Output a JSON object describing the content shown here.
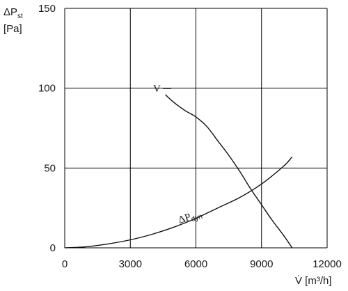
{
  "chart_data": {
    "type": "line",
    "ylabel_main": "ΔP",
    "ylabel_sub": "st",
    "ylabel_unit": "[Pa]",
    "xlabel": "V̇ [m³/h]",
    "xlim": [
      0,
      12000
    ],
    "ylim": [
      0,
      150
    ],
    "x_ticks": [
      0,
      3000,
      6000,
      9000,
      12000
    ],
    "x_tick_labels": [
      "0",
      "3000",
      "6000",
      "9000",
      "12000"
    ],
    "y_ticks": [
      0,
      50,
      100,
      150
    ],
    "y_tick_labels": [
      "0",
      "50",
      "100",
      "150"
    ],
    "grid": true,
    "series": [
      {
        "name": "V",
        "x": [
          4600,
          5000,
          5500,
          6000,
          6500,
          7000,
          7500,
          8000,
          8500,
          9000,
          9500,
          10000,
          10400
        ],
        "y": [
          96,
          91,
          86,
          82,
          76,
          67,
          58,
          48,
          37,
          27,
          17,
          8,
          0
        ]
      },
      {
        "name": "ΔP dyn",
        "name_main": "ΔP",
        "name_sub": "dyn",
        "x": [
          0,
          1000,
          2000,
          3000,
          4000,
          5000,
          6000,
          7000,
          8000,
          9000,
          10000,
          10400
        ],
        "y": [
          0,
          0.7,
          2.5,
          5,
          8.5,
          13,
          18.5,
          25,
          31.5,
          40,
          51,
          57
        ]
      }
    ]
  }
}
